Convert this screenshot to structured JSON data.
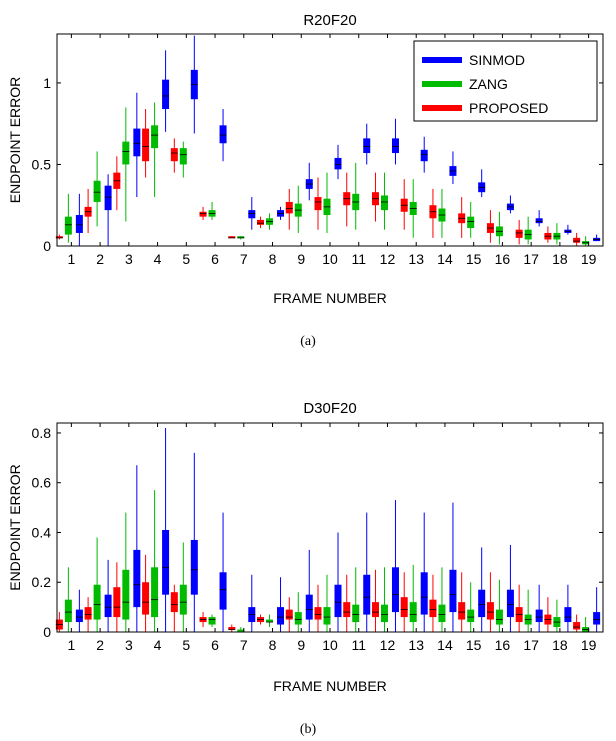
{
  "chart_data": [
    {
      "type": "boxplot",
      "title": "R20F20",
      "xlabel": "FRAME NUMBER",
      "ylabel": "ENDPOINT ERROR",
      "caption": "(a)",
      "ylim": [
        0,
        1.3
      ],
      "yticks": [
        0,
        0.5,
        1
      ],
      "ytick_labels": [
        "0",
        "0.5",
        "1"
      ],
      "categories": [
        "1",
        "2",
        "3",
        "4",
        "5",
        "6",
        "7",
        "8",
        "9",
        "10",
        "11",
        "12",
        "13",
        "14",
        "15",
        "16",
        "17",
        "18",
        "19"
      ],
      "legend": {
        "placement": "top-right",
        "entries": [
          "SINMOD",
          "ZANG",
          "PROPOSED"
        ]
      },
      "series": [
        {
          "name": "PROPOSED",
          "color": "#ff0000",
          "boxes": [
            [
              0.04,
              0.05,
              0.05,
              0.06,
              0.07
            ],
            [
              0.08,
              0.18,
              0.21,
              0.24,
              0.35
            ],
            [
              0.22,
              0.35,
              0.4,
              0.45,
              0.55
            ],
            [
              0.42,
              0.52,
              0.61,
              0.72,
              0.84
            ],
            [
              0.45,
              0.52,
              0.57,
              0.6,
              0.66
            ],
            [
              0.16,
              0.18,
              0.2,
              0.21,
              0.24
            ],
            [
              0.05,
              0.05,
              0.05,
              0.06,
              0.06
            ],
            [
              0.11,
              0.13,
              0.14,
              0.16,
              0.18
            ],
            [
              0.1,
              0.2,
              0.23,
              0.27,
              0.35
            ],
            [
              0.1,
              0.22,
              0.27,
              0.3,
              0.42
            ],
            [
              0.12,
              0.25,
              0.29,
              0.33,
              0.45
            ],
            [
              0.15,
              0.25,
              0.29,
              0.33,
              0.45
            ],
            [
              0.1,
              0.21,
              0.25,
              0.29,
              0.41
            ],
            [
              0.05,
              0.17,
              0.21,
              0.25,
              0.35
            ],
            [
              0.05,
              0.14,
              0.17,
              0.2,
              0.3
            ],
            [
              0.02,
              0.08,
              0.11,
              0.14,
              0.22
            ],
            [
              0.01,
              0.05,
              0.08,
              0.1,
              0.16
            ],
            [
              0.02,
              0.04,
              0.06,
              0.08,
              0.12
            ],
            [
              0.0,
              0.02,
              0.03,
              0.05,
              0.08
            ]
          ]
        },
        {
          "name": "ZANG",
          "color": "#00bb00",
          "boxes": [
            [
              0.02,
              0.07,
              0.13,
              0.18,
              0.32
            ],
            [
              0.12,
              0.27,
              0.33,
              0.4,
              0.58
            ],
            [
              0.15,
              0.5,
              0.58,
              0.64,
              0.85
            ],
            [
              0.3,
              0.6,
              0.68,
              0.74,
              0.88
            ],
            [
              0.42,
              0.5,
              0.56,
              0.6,
              0.64
            ],
            [
              0.16,
              0.18,
              0.2,
              0.22,
              0.27
            ],
            [
              0.04,
              0.05,
              0.05,
              0.06,
              0.06
            ],
            [
              0.1,
              0.13,
              0.15,
              0.17,
              0.2
            ],
            [
              0.08,
              0.18,
              0.22,
              0.26,
              0.37
            ],
            [
              0.08,
              0.19,
              0.24,
              0.29,
              0.45
            ],
            [
              0.1,
              0.22,
              0.27,
              0.32,
              0.51
            ],
            [
              0.1,
              0.22,
              0.27,
              0.31,
              0.45
            ],
            [
              0.05,
              0.19,
              0.23,
              0.27,
              0.41
            ],
            [
              0.05,
              0.15,
              0.19,
              0.23,
              0.35
            ],
            [
              0.05,
              0.11,
              0.15,
              0.18,
              0.27
            ],
            [
              0.01,
              0.06,
              0.09,
              0.12,
              0.21
            ],
            [
              0.01,
              0.04,
              0.07,
              0.1,
              0.18
            ],
            [
              0.01,
              0.04,
              0.06,
              0.08,
              0.14
            ],
            [
              0.0,
              0.01,
              0.02,
              0.03,
              0.06
            ]
          ]
        },
        {
          "name": "SINMOD",
          "color": "#0000ff",
          "boxes": [
            [
              0.0,
              0.08,
              0.13,
              0.19,
              0.32
            ],
            [
              0.0,
              0.22,
              0.3,
              0.37,
              0.44
            ],
            [
              0.3,
              0.55,
              0.63,
              0.72,
              0.94
            ],
            [
              0.7,
              0.84,
              0.92,
              1.02,
              1.2
            ],
            [
              0.69,
              0.9,
              0.99,
              1.08,
              1.29
            ],
            [
              0.52,
              0.63,
              0.68,
              0.74,
              0.84
            ],
            [
              0.1,
              0.17,
              0.2,
              0.22,
              0.3
            ],
            [
              0.16,
              0.18,
              0.2,
              0.22,
              0.24
            ],
            [
              0.28,
              0.35,
              0.38,
              0.41,
              0.51
            ],
            [
              0.41,
              0.47,
              0.5,
              0.54,
              0.62
            ],
            [
              0.5,
              0.57,
              0.61,
              0.66,
              0.75
            ],
            [
              0.5,
              0.57,
              0.61,
              0.66,
              0.78
            ],
            [
              0.45,
              0.52,
              0.56,
              0.59,
              0.67
            ],
            [
              0.38,
              0.43,
              0.46,
              0.49,
              0.58
            ],
            [
              0.3,
              0.33,
              0.36,
              0.39,
              0.47
            ],
            [
              0.2,
              0.22,
              0.24,
              0.26,
              0.31
            ],
            [
              0.12,
              0.14,
              0.15,
              0.17,
              0.22
            ],
            [
              0.07,
              0.08,
              0.09,
              0.1,
              0.13
            ],
            [
              0.03,
              0.03,
              0.04,
              0.05,
              0.07
            ]
          ]
        }
      ]
    },
    {
      "type": "boxplot",
      "title": "D30F20",
      "xlabel": "FRAME NUMBER",
      "ylabel": "ENDPOINT ERROR",
      "caption": "(b)",
      "ylim": [
        0,
        0.84
      ],
      "yticks": [
        0,
        0.2,
        0.4,
        0.6,
        0.8
      ],
      "ytick_labels": [
        "0",
        "0.2",
        "0.4",
        "0.6",
        "0.8"
      ],
      "categories": [
        "1",
        "2",
        "3",
        "4",
        "5",
        "6",
        "7",
        "8",
        "9",
        "10",
        "11",
        "12",
        "13",
        "14",
        "15",
        "16",
        "17",
        "18",
        "19"
      ],
      "series": [
        {
          "name": "PROPOSED",
          "color": "#ff0000",
          "boxes": [
            [
              0.0,
              0.01,
              0.03,
              0.05,
              0.08
            ],
            [
              0.0,
              0.05,
              0.07,
              0.1,
              0.14
            ],
            [
              0.0,
              0.06,
              0.1,
              0.18,
              0.28
            ],
            [
              0.0,
              0.07,
              0.12,
              0.2,
              0.31
            ],
            [
              0.0,
              0.08,
              0.11,
              0.16,
              0.19
            ],
            [
              0.02,
              0.04,
              0.05,
              0.06,
              0.08
            ],
            [
              0.0,
              0.01,
              0.01,
              0.02,
              0.03
            ],
            [
              0.03,
              0.04,
              0.05,
              0.06,
              0.07
            ],
            [
              0.0,
              0.05,
              0.06,
              0.09,
              0.14
            ],
            [
              0.0,
              0.05,
              0.07,
              0.1,
              0.19
            ],
            [
              0.0,
              0.06,
              0.08,
              0.12,
              0.23
            ],
            [
              0.0,
              0.06,
              0.08,
              0.12,
              0.25
            ],
            [
              0.0,
              0.06,
              0.09,
              0.14,
              0.24
            ],
            [
              0.0,
              0.06,
              0.09,
              0.13,
              0.23
            ],
            [
              0.0,
              0.05,
              0.08,
              0.12,
              0.24
            ],
            [
              0.0,
              0.05,
              0.08,
              0.12,
              0.24
            ],
            [
              0.0,
              0.04,
              0.07,
              0.1,
              0.19
            ],
            [
              0.0,
              0.03,
              0.05,
              0.07,
              0.14
            ],
            [
              0.0,
              0.01,
              0.02,
              0.04,
              0.07
            ]
          ]
        },
        {
          "name": "ZANG",
          "color": "#00bb00",
          "boxes": [
            [
              0.0,
              0.04,
              0.08,
              0.13,
              0.26
            ],
            [
              0.0,
              0.05,
              0.11,
              0.19,
              0.38
            ],
            [
              0.0,
              0.05,
              0.12,
              0.25,
              0.48
            ],
            [
              0.0,
              0.06,
              0.13,
              0.26,
              0.57
            ],
            [
              0.0,
              0.07,
              0.12,
              0.19,
              0.36
            ],
            [
              0.02,
              0.03,
              0.05,
              0.06,
              0.07
            ],
            [
              0.0,
              0.0,
              0.0,
              0.01,
              0.02
            ],
            [
              0.02,
              0.04,
              0.04,
              0.05,
              0.07
            ],
            [
              0.0,
              0.03,
              0.05,
              0.08,
              0.16
            ],
            [
              0.0,
              0.03,
              0.06,
              0.1,
              0.23
            ],
            [
              0.0,
              0.04,
              0.07,
              0.11,
              0.26
            ],
            [
              0.0,
              0.04,
              0.07,
              0.11,
              0.26
            ],
            [
              0.0,
              0.04,
              0.07,
              0.12,
              0.27
            ],
            [
              0.0,
              0.04,
              0.07,
              0.11,
              0.26
            ],
            [
              0.0,
              0.04,
              0.06,
              0.09,
              0.2
            ],
            [
              0.0,
              0.03,
              0.05,
              0.09,
              0.21
            ],
            [
              0.0,
              0.03,
              0.05,
              0.07,
              0.17
            ],
            [
              0.0,
              0.02,
              0.04,
              0.06,
              0.13
            ],
            [
              0.0,
              0.0,
              0.01,
              0.02,
              0.06
            ]
          ]
        },
        {
          "name": "SINMOD",
          "color": "#0000ff",
          "boxes": [
            [
              0.0,
              0.04,
              0.06,
              0.09,
              0.17
            ],
            [
              0.0,
              0.06,
              0.1,
              0.15,
              0.29
            ],
            [
              0.0,
              0.1,
              0.19,
              0.33,
              0.67
            ],
            [
              0.0,
              0.15,
              0.26,
              0.41,
              0.82
            ],
            [
              0.0,
              0.15,
              0.25,
              0.37,
              0.72
            ],
            [
              0.0,
              0.09,
              0.17,
              0.24,
              0.48
            ],
            [
              0.0,
              0.04,
              0.07,
              0.1,
              0.23
            ],
            [
              0.0,
              0.03,
              0.06,
              0.1,
              0.22
            ],
            [
              0.0,
              0.05,
              0.09,
              0.15,
              0.33
            ],
            [
              0.0,
              0.06,
              0.12,
              0.19,
              0.4
            ],
            [
              0.0,
              0.07,
              0.14,
              0.23,
              0.48
            ],
            [
              0.0,
              0.08,
              0.15,
              0.26,
              0.53
            ],
            [
              0.0,
              0.07,
              0.14,
              0.24,
              0.48
            ],
            [
              0.0,
              0.08,
              0.15,
              0.25,
              0.52
            ],
            [
              0.0,
              0.06,
              0.11,
              0.17,
              0.34
            ],
            [
              0.0,
              0.06,
              0.11,
              0.17,
              0.35
            ],
            [
              0.0,
              0.04,
              0.06,
              0.09,
              0.19
            ],
            [
              0.0,
              0.04,
              0.06,
              0.1,
              0.19
            ],
            [
              0.0,
              0.03,
              0.05,
              0.08,
              0.18
            ]
          ]
        }
      ]
    }
  ]
}
